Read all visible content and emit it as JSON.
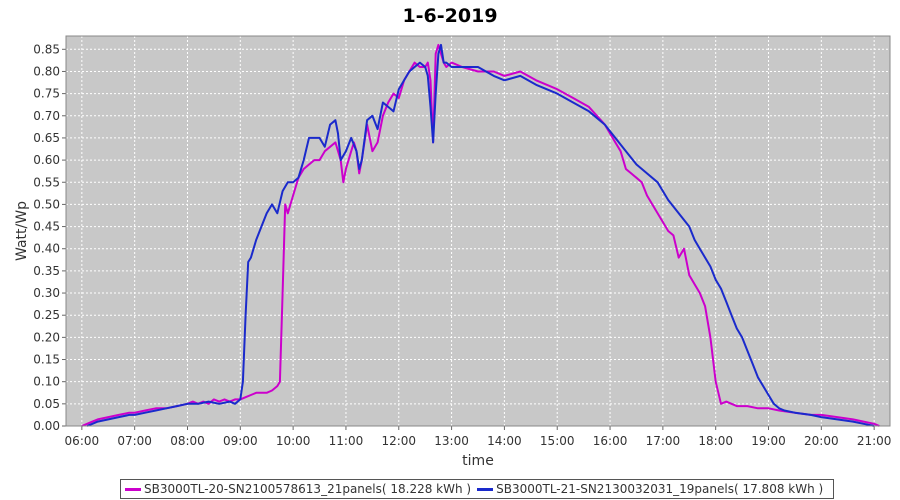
{
  "chart_data": {
    "type": "line",
    "title": "1-6-2019",
    "xlabel": "time",
    "ylabel": "Watt/Wp",
    "x_unit": "hours",
    "xlim": [
      5.7,
      21.3
    ],
    "ylim": [
      0,
      0.88
    ],
    "x_ticks": [
      {
        "value": 6,
        "label": "06:00"
      },
      {
        "value": 7,
        "label": "07:00"
      },
      {
        "value": 8,
        "label": "08:00"
      },
      {
        "value": 9,
        "label": "09:00"
      },
      {
        "value": 10,
        "label": "10:00"
      },
      {
        "value": 11,
        "label": "11:00"
      },
      {
        "value": 12,
        "label": "12:00"
      },
      {
        "value": 13,
        "label": "13:00"
      },
      {
        "value": 14,
        "label": "14:00"
      },
      {
        "value": 15,
        "label": "15:00"
      },
      {
        "value": 16,
        "label": "16:00"
      },
      {
        "value": 17,
        "label": "17:00"
      },
      {
        "value": 18,
        "label": "18:00"
      },
      {
        "value": 19,
        "label": "19:00"
      },
      {
        "value": 20,
        "label": "20:00"
      },
      {
        "value": 21,
        "label": "21:00"
      }
    ],
    "y_ticks": [
      {
        "value": 0,
        "label": "0.00"
      },
      {
        "value": 0.05,
        "label": "0.05"
      },
      {
        "value": 0.1,
        "label": "0.10"
      },
      {
        "value": 0.15,
        "label": "0.15"
      },
      {
        "value": 0.2,
        "label": "0.20"
      },
      {
        "value": 0.25,
        "label": "0.25"
      },
      {
        "value": 0.3,
        "label": "0.30"
      },
      {
        "value": 0.35,
        "label": "0.35"
      },
      {
        "value": 0.4,
        "label": "0.40"
      },
      {
        "value": 0.45,
        "label": "0.45"
      },
      {
        "value": 0.5,
        "label": "0.50"
      },
      {
        "value": 0.55,
        "label": "0.55"
      },
      {
        "value": 0.6,
        "label": "0.60"
      },
      {
        "value": 0.65,
        "label": "0.65"
      },
      {
        "value": 0.7,
        "label": "0.70"
      },
      {
        "value": 0.75,
        "label": "0.75"
      },
      {
        "value": 0.8,
        "label": "0.80"
      },
      {
        "value": 0.85,
        "label": "0.85"
      }
    ],
    "grid": true,
    "legend_position": "bottom",
    "plot_background": "#c8c8c8",
    "series": [
      {
        "name": "SB3000TL-20-SN2100578613_21panels( 18.228 kWh )",
        "color": "#cc00cc",
        "points": [
          [
            6.0,
            0.0
          ],
          [
            6.1,
            0.005
          ],
          [
            6.2,
            0.01
          ],
          [
            6.3,
            0.015
          ],
          [
            6.5,
            0.02
          ],
          [
            6.7,
            0.025
          ],
          [
            6.9,
            0.03
          ],
          [
            7.0,
            0.03
          ],
          [
            7.2,
            0.035
          ],
          [
            7.4,
            0.04
          ],
          [
            7.6,
            0.04
          ],
          [
            7.8,
            0.045
          ],
          [
            8.0,
            0.05
          ],
          [
            8.1,
            0.055
          ],
          [
            8.2,
            0.05
          ],
          [
            8.3,
            0.055
          ],
          [
            8.4,
            0.05
          ],
          [
            8.5,
            0.06
          ],
          [
            8.6,
            0.055
          ],
          [
            8.7,
            0.06
          ],
          [
            8.8,
            0.055
          ],
          [
            8.9,
            0.06
          ],
          [
            9.0,
            0.06
          ],
          [
            9.1,
            0.065
          ],
          [
            9.2,
            0.07
          ],
          [
            9.3,
            0.075
          ],
          [
            9.4,
            0.075
          ],
          [
            9.5,
            0.075
          ],
          [
            9.6,
            0.08
          ],
          [
            9.7,
            0.09
          ],
          [
            9.75,
            0.1
          ],
          [
            9.8,
            0.3
          ],
          [
            9.85,
            0.5
          ],
          [
            9.9,
            0.48
          ],
          [
            10.0,
            0.52
          ],
          [
            10.1,
            0.56
          ],
          [
            10.2,
            0.58
          ],
          [
            10.3,
            0.59
          ],
          [
            10.4,
            0.6
          ],
          [
            10.5,
            0.6
          ],
          [
            10.6,
            0.62
          ],
          [
            10.7,
            0.63
          ],
          [
            10.8,
            0.64
          ],
          [
            10.9,
            0.6
          ],
          [
            10.95,
            0.55
          ],
          [
            11.0,
            0.58
          ],
          [
            11.1,
            0.62
          ],
          [
            11.15,
            0.64
          ],
          [
            11.2,
            0.62
          ],
          [
            11.25,
            0.57
          ],
          [
            11.3,
            0.6
          ],
          [
            11.4,
            0.68
          ],
          [
            11.5,
            0.62
          ],
          [
            11.6,
            0.64
          ],
          [
            11.7,
            0.7
          ],
          [
            11.8,
            0.73
          ],
          [
            11.9,
            0.75
          ],
          [
            12.0,
            0.74
          ],
          [
            12.1,
            0.78
          ],
          [
            12.2,
            0.8
          ],
          [
            12.3,
            0.82
          ],
          [
            12.4,
            0.81
          ],
          [
            12.5,
            0.81
          ],
          [
            12.55,
            0.82
          ],
          [
            12.6,
            0.78
          ],
          [
            12.65,
            0.64
          ],
          [
            12.7,
            0.84
          ],
          [
            12.75,
            0.86
          ],
          [
            12.8,
            0.84
          ],
          [
            12.85,
            0.82
          ],
          [
            12.9,
            0.81
          ],
          [
            13.0,
            0.82
          ],
          [
            13.2,
            0.81
          ],
          [
            13.5,
            0.8
          ],
          [
            13.8,
            0.8
          ],
          [
            14.0,
            0.79
          ],
          [
            14.3,
            0.8
          ],
          [
            14.6,
            0.78
          ],
          [
            15.0,
            0.76
          ],
          [
            15.3,
            0.74
          ],
          [
            15.6,
            0.72
          ],
          [
            15.9,
            0.68
          ],
          [
            16.1,
            0.64
          ],
          [
            16.2,
            0.62
          ],
          [
            16.3,
            0.58
          ],
          [
            16.4,
            0.57
          ],
          [
            16.5,
            0.56
          ],
          [
            16.6,
            0.55
          ],
          [
            16.7,
            0.52
          ],
          [
            16.8,
            0.5
          ],
          [
            16.9,
            0.48
          ],
          [
            17.0,
            0.46
          ],
          [
            17.1,
            0.44
          ],
          [
            17.2,
            0.43
          ],
          [
            17.3,
            0.38
          ],
          [
            17.4,
            0.4
          ],
          [
            17.5,
            0.34
          ],
          [
            17.6,
            0.32
          ],
          [
            17.7,
            0.3
          ],
          [
            17.8,
            0.27
          ],
          [
            17.9,
            0.2
          ],
          [
            18.0,
            0.1
          ],
          [
            18.1,
            0.05
          ],
          [
            18.2,
            0.055
          ],
          [
            18.3,
            0.05
          ],
          [
            18.4,
            0.045
          ],
          [
            18.6,
            0.045
          ],
          [
            18.8,
            0.04
          ],
          [
            19.0,
            0.04
          ],
          [
            19.2,
            0.035
          ],
          [
            19.5,
            0.03
          ],
          [
            19.8,
            0.025
          ],
          [
            20.0,
            0.025
          ],
          [
            20.3,
            0.02
          ],
          [
            20.6,
            0.015
          ],
          [
            20.8,
            0.01
          ],
          [
            21.0,
            0.005
          ],
          [
            21.1,
            0.0
          ]
        ]
      },
      {
        "name": "SB3000TL-21-SN2130032031_19panels( 17.808 kWh )",
        "color": "#1a2acc",
        "points": [
          [
            6.1,
            0.0
          ],
          [
            6.2,
            0.005
          ],
          [
            6.3,
            0.01
          ],
          [
            6.5,
            0.015
          ],
          [
            6.7,
            0.02
          ],
          [
            6.9,
            0.025
          ],
          [
            7.0,
            0.025
          ],
          [
            7.2,
            0.03
          ],
          [
            7.4,
            0.035
          ],
          [
            7.6,
            0.04
          ],
          [
            7.8,
            0.045
          ],
          [
            8.0,
            0.05
          ],
          [
            8.2,
            0.05
          ],
          [
            8.4,
            0.055
          ],
          [
            8.6,
            0.05
          ],
          [
            8.8,
            0.055
          ],
          [
            8.9,
            0.05
          ],
          [
            9.0,
            0.06
          ],
          [
            9.05,
            0.1
          ],
          [
            9.1,
            0.25
          ],
          [
            9.15,
            0.37
          ],
          [
            9.2,
            0.38
          ],
          [
            9.3,
            0.42
          ],
          [
            9.4,
            0.45
          ],
          [
            9.5,
            0.48
          ],
          [
            9.6,
            0.5
          ],
          [
            9.7,
            0.48
          ],
          [
            9.8,
            0.53
          ],
          [
            9.9,
            0.55
          ],
          [
            10.0,
            0.55
          ],
          [
            10.1,
            0.56
          ],
          [
            10.2,
            0.6
          ],
          [
            10.3,
            0.65
          ],
          [
            10.4,
            0.65
          ],
          [
            10.5,
            0.65
          ],
          [
            10.6,
            0.63
          ],
          [
            10.7,
            0.68
          ],
          [
            10.8,
            0.69
          ],
          [
            10.85,
            0.66
          ],
          [
            10.9,
            0.6
          ],
          [
            11.0,
            0.62
          ],
          [
            11.1,
            0.65
          ],
          [
            11.2,
            0.62
          ],
          [
            11.25,
            0.58
          ],
          [
            11.3,
            0.6
          ],
          [
            11.4,
            0.69
          ],
          [
            11.5,
            0.7
          ],
          [
            11.6,
            0.67
          ],
          [
            11.7,
            0.73
          ],
          [
            11.8,
            0.72
          ],
          [
            11.9,
            0.71
          ],
          [
            12.0,
            0.76
          ],
          [
            12.1,
            0.78
          ],
          [
            12.2,
            0.8
          ],
          [
            12.3,
            0.81
          ],
          [
            12.4,
            0.82
          ],
          [
            12.5,
            0.81
          ],
          [
            12.55,
            0.79
          ],
          [
            12.6,
            0.72
          ],
          [
            12.65,
            0.64
          ],
          [
            12.7,
            0.75
          ],
          [
            12.75,
            0.84
          ],
          [
            12.8,
            0.86
          ],
          [
            12.85,
            0.82
          ],
          [
            12.9,
            0.82
          ],
          [
            13.0,
            0.81
          ],
          [
            13.2,
            0.81
          ],
          [
            13.5,
            0.81
          ],
          [
            13.8,
            0.79
          ],
          [
            14.0,
            0.78
          ],
          [
            14.3,
            0.79
          ],
          [
            14.6,
            0.77
          ],
          [
            15.0,
            0.75
          ],
          [
            15.3,
            0.73
          ],
          [
            15.6,
            0.71
          ],
          [
            15.9,
            0.68
          ],
          [
            16.1,
            0.65
          ],
          [
            16.3,
            0.62
          ],
          [
            16.5,
            0.59
          ],
          [
            16.7,
            0.57
          ],
          [
            16.9,
            0.55
          ],
          [
            17.1,
            0.51
          ],
          [
            17.3,
            0.48
          ],
          [
            17.5,
            0.45
          ],
          [
            17.6,
            0.42
          ],
          [
            17.7,
            0.4
          ],
          [
            17.8,
            0.38
          ],
          [
            17.9,
            0.36
          ],
          [
            18.0,
            0.33
          ],
          [
            18.1,
            0.31
          ],
          [
            18.2,
            0.28
          ],
          [
            18.3,
            0.25
          ],
          [
            18.4,
            0.22
          ],
          [
            18.5,
            0.2
          ],
          [
            18.6,
            0.17
          ],
          [
            18.7,
            0.14
          ],
          [
            18.8,
            0.11
          ],
          [
            18.9,
            0.09
          ],
          [
            19.0,
            0.07
          ],
          [
            19.1,
            0.05
          ],
          [
            19.2,
            0.04
          ],
          [
            19.3,
            0.035
          ],
          [
            19.5,
            0.03
          ],
          [
            19.8,
            0.025
          ],
          [
            20.0,
            0.02
          ],
          [
            20.3,
            0.015
          ],
          [
            20.6,
            0.01
          ],
          [
            20.8,
            0.005
          ],
          [
            21.0,
            0.0
          ]
        ]
      }
    ]
  }
}
